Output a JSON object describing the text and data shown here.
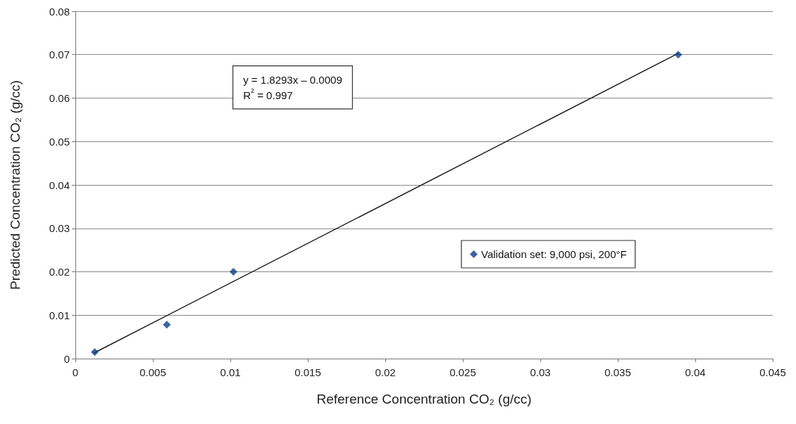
{
  "chart_data": {
    "type": "scatter",
    "xlabel": "Reference Concentration CO₂ (g/cc)",
    "ylabel": "Predicted Concentration CO₂ (g/cc)",
    "xlim": [
      0,
      0.045
    ],
    "xticks": [
      0,
      0.005,
      0.01,
      0.015,
      0.02,
      0.025,
      0.03,
      0.035,
      0.04,
      0.045
    ],
    "ylim": [
      0,
      0.08
    ],
    "yticks": [
      0,
      0.01,
      0.02,
      0.03,
      0.04,
      0.05,
      0.06,
      0.07,
      0.08
    ],
    "grid": "y",
    "legend": "right",
    "marker": "diamond",
    "annotations": [
      "y = 1.8293x – 0.0009",
      "R$^{2}$ = 0.997"
    ],
    "series": [
      {
        "name": "Validation set: 9,000 psi, 200°F",
        "color": "#0b3c8c",
        "x": [
          0.00125,
          0.0059,
          0.0102,
          0.0389
        ],
        "values": [
          0.0015,
          0.0078,
          0.02,
          0.07
        ]
      },
      {
        "type": "line",
        "color": "#1a1a1a",
        "marker": "none",
        "x": [
          0.0012,
          0.0389
        ],
        "values": [
          0.0013,
          0.0703
        ]
      }
    ]
  }
}
